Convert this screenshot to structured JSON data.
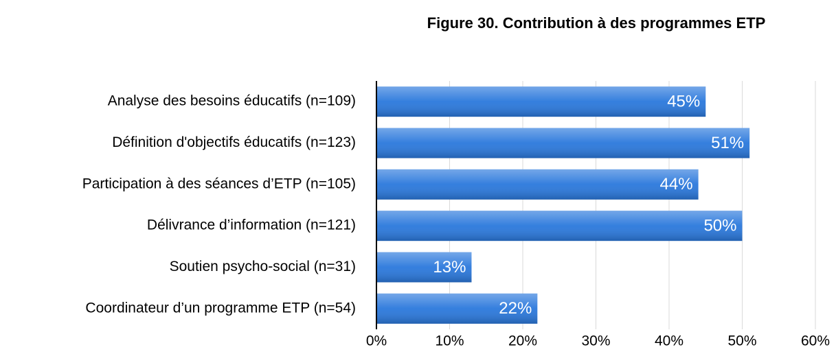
{
  "chart_data": {
    "type": "bar",
    "orientation": "horizontal",
    "title": "Figure 30. Contribution à des programmes ETP",
    "categories": [
      "Analyse des besoins éducatifs (n=109)",
      "Définition d'objectifs éducatifs (n=123)",
      "Participation à des séances d’ETP (n=105)",
      "Délivrance d’information (n=121)",
      "Soutien psycho-social (n=31)",
      "Coordinateur d’un programme ETP (n=54)"
    ],
    "values": [
      45,
      51,
      44,
      50,
      13,
      22
    ],
    "value_labels": [
      "45%",
      "51%",
      "44%",
      "50%",
      "13%",
      "22%"
    ],
    "color": "#2a78dc",
    "xlim": [
      0,
      60
    ],
    "xticks": [
      {
        "value": 0,
        "label": "0%"
      },
      {
        "value": 10,
        "label": "10%"
      },
      {
        "value": 20,
        "label": "20%"
      },
      {
        "value": 30,
        "label": "30%"
      },
      {
        "value": 40,
        "label": "40%"
      },
      {
        "value": 50,
        "label": "50%"
      },
      {
        "value": 60,
        "label": "60%"
      }
    ],
    "grid": true
  }
}
